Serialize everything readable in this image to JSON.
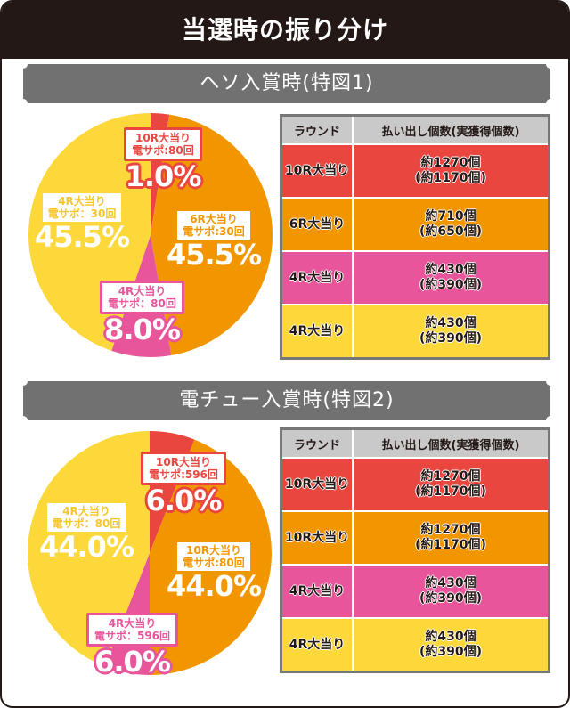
{
  "title": "当選時の振り分け",
  "colors": {
    "red": "#e8463f",
    "orange": "#f29600",
    "pink": "#e8559a",
    "yellow": "#fdd83a",
    "header_bg": "#231815",
    "banner_bg": "#727171",
    "table_header_bg": "#c9c9c9"
  },
  "sections": [
    {
      "banner": "ヘソ入賞時(特図1)",
      "labels": [
        {
          "round": "10R大当り",
          "sapo": "電サポ:80回",
          "pct": "1.0%"
        },
        {
          "round": "6R大当り",
          "sapo": "電サポ:30回",
          "pct": "45.5%"
        },
        {
          "round": "4R大当り",
          "sapo": "電サポ：80回",
          "pct": "8.0%"
        },
        {
          "round": "4R大当り",
          "sapo": "電サポ：30回",
          "pct": "45.5%"
        }
      ],
      "table": {
        "headers": [
          "ラウンド",
          "払い出し個数(実獲得個数)"
        ],
        "rows": [
          {
            "round": "10R大当り",
            "payout": "約1270個",
            "net": "(約1170個)"
          },
          {
            "round": "6R大当り",
            "payout": "約710個",
            "net": "(約650個)"
          },
          {
            "round": "4R大当り",
            "payout": "約430個",
            "net": "(約390個)"
          },
          {
            "round": "4R大当り",
            "payout": "約430個",
            "net": "(約390個)"
          }
        ]
      }
    },
    {
      "banner": "電チュー入賞時(特図2)",
      "labels": [
        {
          "round": "10R大当り",
          "sapo": "電サポ:596回",
          "pct": "6.0%"
        },
        {
          "round": "10R大当り",
          "sapo": "電サポ:80回",
          "pct": "44.0%"
        },
        {
          "round": "4R大当り",
          "sapo": "電サポ：596回",
          "pct": "6.0%"
        },
        {
          "round": "4R大当り",
          "sapo": "電サポ：80回",
          "pct": "44.0%"
        }
      ],
      "table": {
        "headers": [
          "ラウンド",
          "払い出し個数(実獲得個数)"
        ],
        "rows": [
          {
            "round": "10R大当り",
            "payout": "約1270個",
            "net": "(約1170個)"
          },
          {
            "round": "10R大当り",
            "payout": "約1270個",
            "net": "(約1170個)"
          },
          {
            "round": "4R大当り",
            "payout": "約430個",
            "net": "(約390個)"
          },
          {
            "round": "4R大当り",
            "payout": "約430個",
            "net": "(約390個)"
          }
        ]
      }
    }
  ],
  "chart_data": [
    {
      "type": "pie",
      "title": "ヘソ入賞時(特図1)",
      "categories": [
        "10R大当り 電サポ:80回",
        "6R大当り 電サポ:30回",
        "4R大当り 電サポ:80回",
        "4R大当り 電サポ:30回"
      ],
      "values": [
        1.0,
        45.5,
        8.0,
        45.5
      ],
      "colors": [
        "#e8463f",
        "#f29600",
        "#e8559a",
        "#fdd83a"
      ]
    },
    {
      "type": "pie",
      "title": "電チュー入賞時(特図2)",
      "categories": [
        "10R大当り 電サポ:596回",
        "10R大当り 電サポ:80回",
        "4R大当り 電サポ:596回",
        "4R大当り 電サポ:80回"
      ],
      "values": [
        6.0,
        44.0,
        6.0,
        44.0
      ],
      "colors": [
        "#e8463f",
        "#f29600",
        "#e8559a",
        "#fdd83a"
      ]
    }
  ]
}
